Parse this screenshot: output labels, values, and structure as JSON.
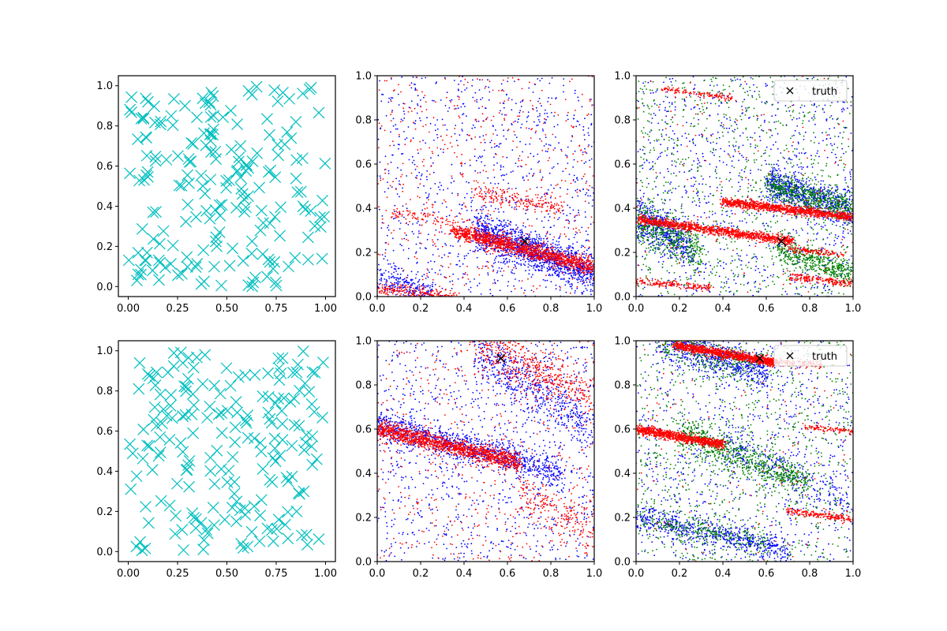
{
  "figure": {
    "layout": "2 rows x 3 columns"
  },
  "chart_data": [
    {
      "type": "scatter",
      "title": "",
      "xlabel": "",
      "ylabel": "",
      "xlim": [
        -0.05,
        1.05
      ],
      "ylim": [
        -0.05,
        1.05
      ],
      "xticks": [
        "0.00",
        "0.25",
        "0.50",
        "0.75",
        "1.00"
      ],
      "yticks": [
        "0.0",
        "0.2",
        "0.4",
        "0.6",
        "0.8",
        "1.0"
      ],
      "grid": false,
      "legend": null,
      "series": [
        {
          "marker": "x",
          "color": "#00bfbf",
          "count": 200,
          "distribution": "uniform",
          "seed": 11
        }
      ]
    },
    {
      "type": "scatter",
      "title": "",
      "xlabel": "",
      "ylabel": "",
      "xlim": [
        0,
        1
      ],
      "ylim": [
        0,
        1
      ],
      "xticks": [
        "0.0",
        "0.2",
        "0.4",
        "0.6",
        "0.8",
        "1.0"
      ],
      "yticks": [
        "0.0",
        "0.2",
        "0.4",
        "0.6",
        "0.8",
        "1.0"
      ],
      "grid": false,
      "legend": null,
      "truth": {
        "x": 0.68,
        "y": 0.25,
        "marker": "x",
        "color": "#000000"
      },
      "series": [
        {
          "marker": "dot",
          "color": "#0000ff",
          "background_count": 900,
          "seed": 21,
          "bands": [
            {
              "x_start": 0.45,
              "x_end": 1.0,
              "y_start": 0.3,
              "y_end": 0.1,
              "spread": 0.045,
              "count": 1300
            },
            {
              "x_start": 0.0,
              "x_end": 0.25,
              "y_start": 0.1,
              "y_end": 0.0,
              "spread": 0.04,
              "count": 250
            }
          ]
        },
        {
          "marker": "dot",
          "color": "#ff0000",
          "background_count": 500,
          "seed": 31,
          "bands": [
            {
              "x_start": 0.35,
              "x_end": 1.0,
              "y_start": 0.3,
              "y_end": 0.13,
              "spread": 0.018,
              "count": 1300
            },
            {
              "x_start": 0.0,
              "x_end": 0.35,
              "y_start": 0.04,
              "y_end": 0.0,
              "spread": 0.012,
              "count": 200
            },
            {
              "x_start": 0.45,
              "x_end": 0.85,
              "y_start": 0.47,
              "y_end": 0.4,
              "spread": 0.02,
              "count": 180
            },
            {
              "x_start": 0.05,
              "x_end": 0.35,
              "y_start": 0.38,
              "y_end": 0.34,
              "spread": 0.015,
              "count": 80
            }
          ]
        }
      ]
    },
    {
      "type": "scatter",
      "title": "",
      "xlabel": "",
      "ylabel": "",
      "xlim": [
        0,
        1
      ],
      "ylim": [
        0,
        1
      ],
      "xticks": [
        "0.0",
        "0.2",
        "0.4",
        "0.6",
        "0.8",
        "1.0"
      ],
      "yticks": [
        "0.0",
        "0.2",
        "0.4",
        "0.6",
        "0.8",
        "1.0"
      ],
      "grid": false,
      "legend": "top-right",
      "legend_entries": [
        "truth"
      ],
      "truth": {
        "x": 0.67,
        "y": 0.25,
        "marker": "x",
        "color": "#000000",
        "label": "truth"
      },
      "series": [
        {
          "marker": "dot",
          "color": "#0000ff",
          "background_count": 900,
          "seed": 41,
          "bands": [
            {
              "x_start": 0.6,
              "x_end": 1.0,
              "y_start": 0.52,
              "y_end": 0.38,
              "spread": 0.04,
              "count": 700
            },
            {
              "x_start": 0.0,
              "x_end": 0.25,
              "y_start": 0.37,
              "y_end": 0.22,
              "spread": 0.05,
              "count": 500
            }
          ]
        },
        {
          "marker": "dot",
          "color": "#008000",
          "background_count": 900,
          "seed": 51,
          "bands": [
            {
              "x_start": 0.6,
              "x_end": 1.0,
              "y_start": 0.5,
              "y_end": 0.4,
              "spread": 0.035,
              "count": 600
            },
            {
              "x_start": 0.0,
              "x_end": 0.3,
              "y_start": 0.35,
              "y_end": 0.2,
              "spread": 0.05,
              "count": 450
            },
            {
              "x_start": 0.65,
              "x_end": 1.0,
              "y_start": 0.22,
              "y_end": 0.1,
              "spread": 0.03,
              "count": 450
            }
          ]
        },
        {
          "marker": "dot",
          "color": "#ff0000",
          "background_count": 120,
          "seed": 61,
          "bands": [
            {
              "x_start": 0.0,
              "x_end": 0.72,
              "y_start": 0.35,
              "y_end": 0.25,
              "spread": 0.01,
              "count": 1100
            },
            {
              "x_start": 0.4,
              "x_end": 1.0,
              "y_start": 0.43,
              "y_end": 0.36,
              "spread": 0.01,
              "count": 1100
            },
            {
              "x_start": 0.0,
              "x_end": 0.35,
              "y_start": 0.07,
              "y_end": 0.04,
              "spread": 0.008,
              "count": 180
            },
            {
              "x_start": 0.7,
              "x_end": 1.0,
              "y_start": 0.09,
              "y_end": 0.06,
              "spread": 0.008,
              "count": 180
            },
            {
              "x_start": 0.12,
              "x_end": 0.45,
              "y_start": 0.94,
              "y_end": 0.9,
              "spread": 0.007,
              "count": 120
            },
            {
              "x_start": 0.7,
              "x_end": 0.95,
              "y_start": 0.22,
              "y_end": 0.19,
              "spread": 0.008,
              "count": 120
            }
          ]
        }
      ]
    },
    {
      "type": "scatter",
      "title": "",
      "xlabel": "",
      "ylabel": "",
      "xlim": [
        -0.05,
        1.05
      ],
      "ylim": [
        -0.05,
        1.05
      ],
      "xticks": [
        "0.00",
        "0.25",
        "0.50",
        "0.75",
        "1.00"
      ],
      "yticks": [
        "0.0",
        "0.2",
        "0.4",
        "0.6",
        "0.8",
        "1.0"
      ],
      "grid": false,
      "legend": null,
      "series": [
        {
          "marker": "x",
          "color": "#00bfbf",
          "count": 200,
          "distribution": "uniform",
          "seed": 71
        }
      ]
    },
    {
      "type": "scatter",
      "title": "",
      "xlabel": "",
      "ylabel": "",
      "xlim": [
        0,
        1
      ],
      "ylim": [
        0,
        1
      ],
      "xticks": [
        "0.0",
        "0.2",
        "0.4",
        "0.6",
        "0.8",
        "1.0"
      ],
      "yticks": [
        "0.0",
        "0.2",
        "0.4",
        "0.6",
        "0.8",
        "1.0"
      ],
      "grid": false,
      "legend": null,
      "truth": {
        "x": 0.57,
        "y": 0.92,
        "marker": "x",
        "color": "#000000"
      },
      "series": [
        {
          "marker": "dot",
          "color": "#0000ff",
          "background_count": 1000,
          "seed": 81,
          "bands": [
            {
              "x_start": 0.0,
              "x_end": 0.85,
              "y_start": 0.62,
              "y_end": 0.4,
              "spread": 0.035,
              "count": 1000
            },
            {
              "x_start": 0.45,
              "x_end": 1.0,
              "y_start": 0.95,
              "y_end": 0.6,
              "spread": 0.06,
              "count": 500
            }
          ]
        },
        {
          "marker": "dot",
          "color": "#ff0000",
          "background_count": 500,
          "seed": 91,
          "bands": [
            {
              "x_start": 0.0,
              "x_end": 0.65,
              "y_start": 0.6,
              "y_end": 0.45,
              "spread": 0.02,
              "count": 1300
            },
            {
              "x_start": 0.45,
              "x_end": 1.0,
              "y_start": 0.98,
              "y_end": 0.75,
              "spread": 0.05,
              "count": 450
            },
            {
              "x_start": 0.65,
              "x_end": 1.0,
              "y_start": 0.3,
              "y_end": 0.15,
              "spread": 0.05,
              "count": 200
            }
          ]
        }
      ]
    },
    {
      "type": "scatter",
      "title": "",
      "xlabel": "",
      "ylabel": "",
      "xlim": [
        0,
        1
      ],
      "ylim": [
        0,
        1
      ],
      "xticks": [
        "0.0",
        "0.2",
        "0.4",
        "0.6",
        "0.8",
        "1.0"
      ],
      "yticks": [
        "0.0",
        "0.2",
        "0.4",
        "0.6",
        "0.8",
        "1.0"
      ],
      "grid": false,
      "legend": "top-right",
      "legend_entries": [
        "truth"
      ],
      "truth": {
        "x": 0.57,
        "y": 0.92,
        "marker": "x",
        "color": "#000000",
        "label": "truth"
      },
      "series": [
        {
          "marker": "dot",
          "color": "#0000ff",
          "background_count": 800,
          "seed": 101,
          "bands": [
            {
              "x_start": 0.1,
              "x_end": 0.6,
              "y_start": 1.0,
              "y_end": 0.85,
              "spread": 0.04,
              "count": 600
            },
            {
              "x_start": 0.0,
              "x_end": 0.7,
              "y_start": 0.2,
              "y_end": 0.05,
              "spread": 0.03,
              "count": 600
            },
            {
              "x_start": 0.4,
              "x_end": 1.0,
              "y_start": 0.55,
              "y_end": 0.25,
              "spread": 0.05,
              "count": 300
            }
          ]
        },
        {
          "marker": "dot",
          "color": "#008000",
          "background_count": 900,
          "seed": 111,
          "bands": [
            {
              "x_start": 0.2,
              "x_end": 0.8,
              "y_start": 0.58,
              "y_end": 0.35,
              "spread": 0.04,
              "count": 700
            },
            {
              "x_start": 0.1,
              "x_end": 0.55,
              "y_start": 1.0,
              "y_end": 0.88,
              "spread": 0.04,
              "count": 300
            },
            {
              "x_start": 0.0,
              "x_end": 0.6,
              "y_start": 0.2,
              "y_end": 0.08,
              "spread": 0.03,
              "count": 250
            }
          ]
        },
        {
          "marker": "dot",
          "color": "#ff0000",
          "background_count": 120,
          "seed": 121,
          "bands": [
            {
              "x_start": 0.18,
              "x_end": 0.65,
              "y_start": 0.98,
              "y_end": 0.9,
              "spread": 0.01,
              "count": 1100
            },
            {
              "x_start": 0.0,
              "x_end": 0.4,
              "y_start": 0.6,
              "y_end": 0.53,
              "spread": 0.01,
              "count": 900
            },
            {
              "x_start": 0.7,
              "x_end": 1.0,
              "y_start": 0.23,
              "y_end": 0.19,
              "spread": 0.008,
              "count": 200
            },
            {
              "x_start": 0.78,
              "x_end": 1.0,
              "y_start": 0.61,
              "y_end": 0.59,
              "spread": 0.006,
              "count": 100
            },
            {
              "x_start": 0.6,
              "x_end": 0.85,
              "y_start": 0.91,
              "y_end": 0.89,
              "spread": 0.008,
              "count": 120
            }
          ]
        }
      ]
    }
  ]
}
